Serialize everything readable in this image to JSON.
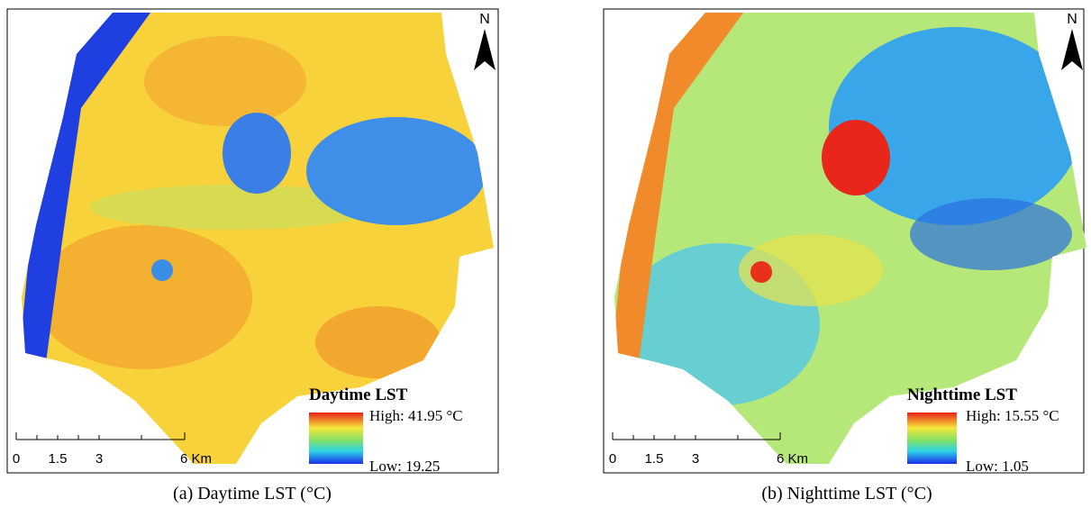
{
  "panels": [
    {
      "legend": {
        "title": "Daytime LST",
        "high": "High: 41.95 °C",
        "low": "Low: 19.25"
      },
      "north": "N",
      "scale_bar": [
        "0",
        "1.5",
        "3",
        "6 Km"
      ],
      "caption": "(a) Daytime LST (°C)"
    },
    {
      "legend": {
        "title": "Nighttime LST",
        "high": "High: 15.55 °C",
        "low": "Low: 1.05"
      },
      "north": "N",
      "scale_bar": [
        "0",
        "1.5",
        "3",
        "6 Km"
      ],
      "caption": "(b) Nighttime LST (°C)"
    }
  ]
}
